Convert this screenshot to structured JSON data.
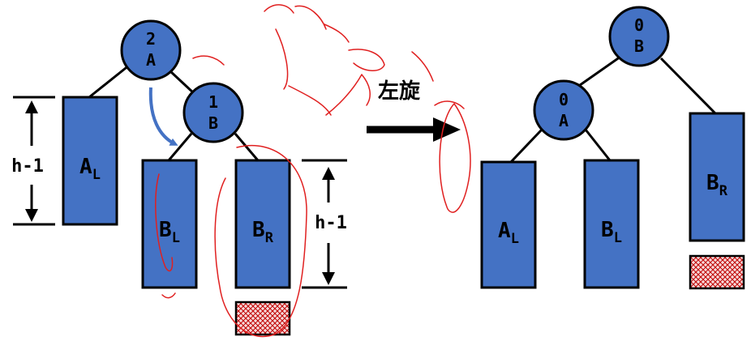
{
  "colors": {
    "node_fill": "#4472c4",
    "outline": "#000000",
    "hatch": "#c00000",
    "hatch_bg": "#f6dada",
    "curved_arrow": "#4472c4",
    "pen_ink": "#e02020"
  },
  "left_tree": {
    "root": {
      "balance": "2",
      "name": "A"
    },
    "child": {
      "balance": "1",
      "name": "B"
    },
    "subtrees": {
      "al": {
        "base": "A",
        "sub": "L"
      },
      "bl": {
        "base": "B",
        "sub": "L"
      },
      "br": {
        "base": "B",
        "sub": "R"
      }
    },
    "height_left": "h-1",
    "height_right": "h-1"
  },
  "operation": {
    "label": "左旋"
  },
  "right_tree": {
    "root": {
      "balance": "0",
      "name": "B"
    },
    "child": {
      "balance": "0",
      "name": "A"
    },
    "subtrees": {
      "al": {
        "base": "A",
        "sub": "L"
      },
      "bl": {
        "base": "B",
        "sub": "L"
      },
      "br": {
        "base": "B",
        "sub": "R"
      }
    }
  }
}
